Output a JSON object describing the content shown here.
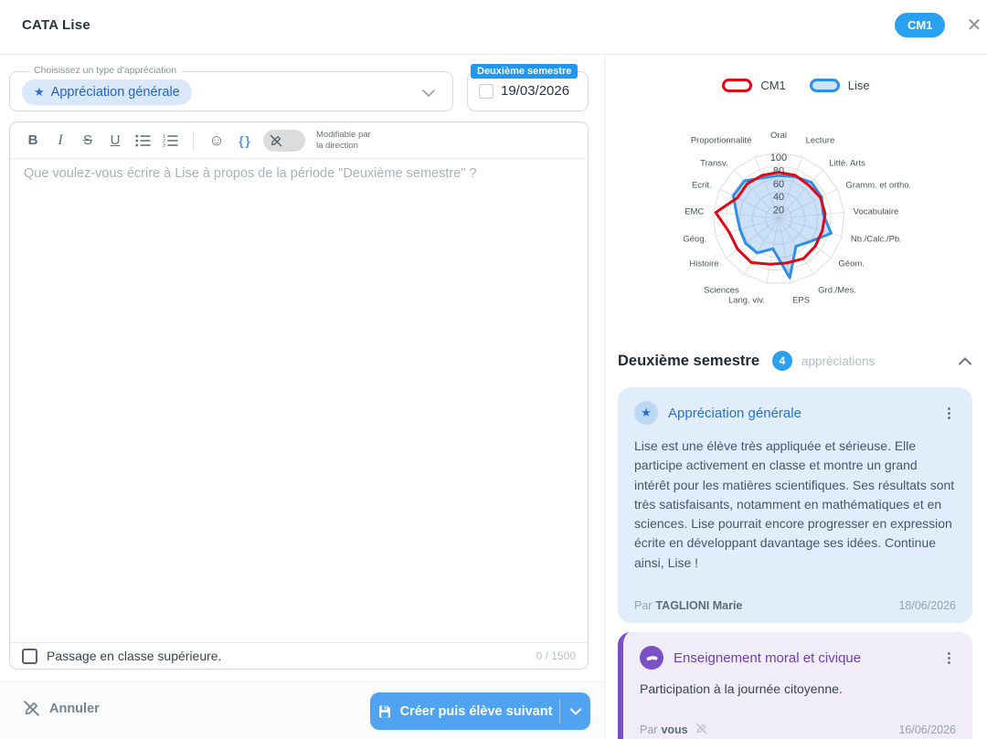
{
  "header": {
    "title": "CATA Lise",
    "class_badge": "CM1"
  },
  "icons": {
    "star": "★",
    "kebab": "⋮",
    "close": "✕",
    "smiley": "☺",
    "braces": "{ }"
  },
  "form": {
    "type_select": {
      "label": "Choisissez un type d'appréciation",
      "value": "Appréciation générale"
    },
    "date_field": {
      "badge": "Deuxième semestre",
      "value": "19/03/2026"
    },
    "toolbar": {
      "bold": "B",
      "italic": "I",
      "strike": "S",
      "underline": "U",
      "modifiable_line1": "Modifiable par",
      "modifiable_line2": "la direction"
    },
    "editor_placeholder": "Que voulez-vous écrire à Lise à propos de la période \"Deuxième semestre\" ?",
    "checkbox_label": "Passage en classe supérieure.",
    "char_counter": "0 / 1500"
  },
  "footer": {
    "cancel_label": "Annuler",
    "submit_label": "Créer puis élève suivant"
  },
  "chart_data": {
    "type": "radar",
    "categories": [
      "Oral",
      "Lecture",
      "Litté. Arts",
      "Gramm. et ortho.",
      "Vocabulaire",
      "Nb./Calc./Pb.",
      "Géom.",
      "Grd./Mes.",
      "EPS",
      "Lang. viv.",
      "Sciences",
      "Histoire",
      "Géog.",
      "EMC",
      "Ecrit.",
      "Transv.",
      "Proportionnalité"
    ],
    "series": [
      {
        "name": "CM1",
        "color": "#e30613",
        "fill": "none",
        "values": [
          70,
          70,
          68,
          71,
          71,
          69,
          70,
          72,
          69,
          71,
          79,
          78,
          78,
          96,
          70,
          71,
          70
        ]
      },
      {
        "name": "Lise",
        "color": "#2e8fe8",
        "fill": "rgba(110,170,235,0.35)",
        "values": [
          65,
          68,
          74,
          73,
          68,
          83,
          59,
          50,
          92,
          47,
          62,
          63,
          61,
          64,
          77,
          77,
          66
        ]
      }
    ],
    "ticks": [
      20,
      40,
      60,
      80,
      100
    ],
    "rmax": 100,
    "grid": true,
    "legend_position": "top"
  },
  "legend": [
    {
      "label": "CM1",
      "stroke": "#e30613",
      "fill": "#ffffff"
    },
    {
      "label": "Lise",
      "stroke": "#2e8fe8",
      "fill": "#cfe3f7"
    }
  ],
  "section": {
    "title": "Deuxième semestre",
    "count": "4",
    "suffix": "appréciations"
  },
  "cards": [
    {
      "title": "Appréciation générale",
      "body": "Lise est une élève très appliquée et sérieuse. Elle participe activement en classe et montre un grand intérêt pour les matières scientifiques. Ses résultats sont très satisfaisants, notamment en mathématiques et en sciences. Lise pourrait encore progresser en expression écrite en développant davantage ses idées. Continue ainsi, Lise !",
      "author_prefix": "Par",
      "author": "TAGLIONI Marie",
      "date": "18/06/2026"
    },
    {
      "title": "Enseignement moral et civique",
      "body": "Participation à la journée citoyenne.",
      "author_prefix": "Par",
      "author": "vous",
      "date": "16/06/2026"
    }
  ]
}
